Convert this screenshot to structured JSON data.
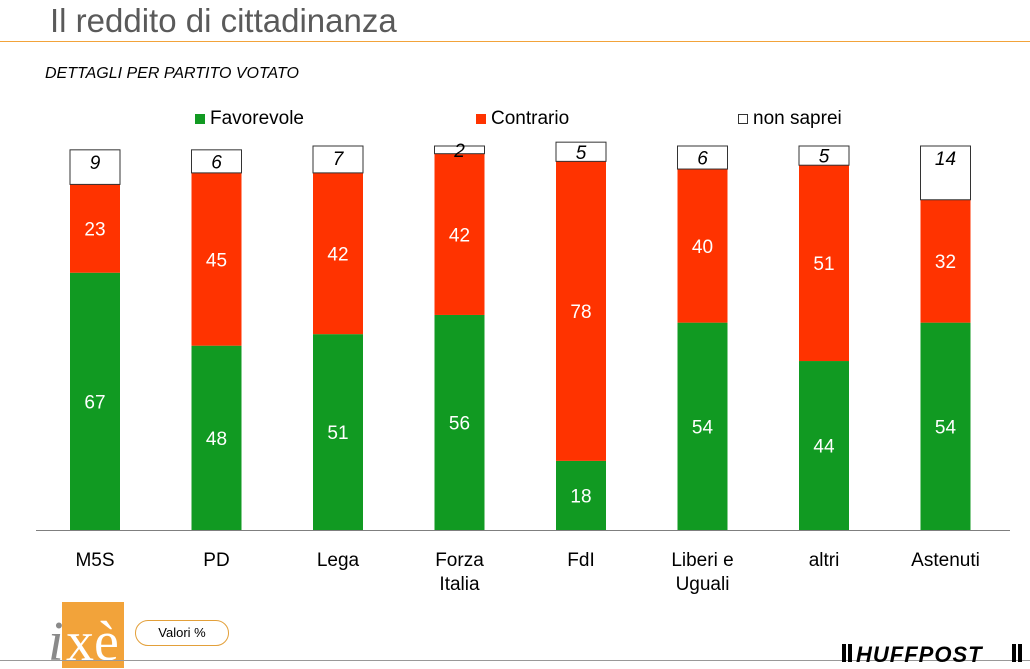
{
  "page": {
    "title": "Il reddito di cittadinanza",
    "subtitle": "DETTAGLI PER PARTITO VOTATO",
    "note": "Valori %",
    "logo_left_text": "ixè",
    "logo_right_text": "HUFFPOST"
  },
  "legend": [
    {
      "label": "Favorevole",
      "color": "#119a22"
    },
    {
      "label": "Contrario",
      "color": "#ff3300"
    },
    {
      "label": "non saprei",
      "color": "#ffffff"
    }
  ],
  "chart_data": {
    "type": "bar",
    "stacked": true,
    "categories": [
      "M5S",
      "PD",
      "Lega",
      "Forza Italia",
      "FdI",
      "Liberi e Uguali",
      "altri",
      "Astenuti"
    ],
    "series": [
      {
        "name": "Favorevole",
        "color": "#119a22",
        "values": [
          67,
          48,
          51,
          56,
          18,
          54,
          44,
          54
        ]
      },
      {
        "name": "Contrario",
        "color": "#ff3300",
        "values": [
          23,
          45,
          42,
          42,
          78,
          40,
          51,
          32
        ]
      },
      {
        "name": "non saprei",
        "color": "#ffffff",
        "values": [
          9,
          6,
          7,
          2,
          5,
          6,
          5,
          14
        ]
      }
    ],
    "ylim": [
      0,
      100
    ],
    "grid": false,
    "legend_position": "top"
  }
}
